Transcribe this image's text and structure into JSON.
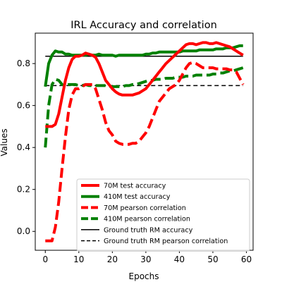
{
  "chart_data": {
    "type": "line",
    "title": "IRL Accuracy and correlation",
    "xlabel": "Epochs",
    "ylabel": "Values",
    "xlim": [
      -3,
      62
    ],
    "ylim": [
      -0.09,
      0.945
    ],
    "xticks": [
      0,
      10,
      20,
      30,
      40,
      50,
      60
    ],
    "yticks": [
      0.0,
      0.2,
      0.4,
      0.6,
      0.8
    ],
    "grid": false,
    "legend_position": "lower-right",
    "series": [
      {
        "name": "70M test accuracy",
        "color": "#ff0000",
        "style": "solid",
        "width": 4,
        "x": [
          0,
          1,
          2,
          3,
          4,
          5,
          6,
          7,
          8,
          9,
          10,
          11,
          12,
          13,
          14,
          15,
          16,
          17,
          18,
          19,
          20,
          21,
          22,
          23,
          24,
          25,
          26,
          27,
          28,
          29,
          30,
          31,
          32,
          33,
          34,
          35,
          36,
          37,
          38,
          39,
          40,
          41,
          42,
          43,
          44,
          45,
          46,
          47,
          48,
          49,
          50,
          51,
          52,
          53,
          54,
          55,
          56,
          57,
          58,
          59
        ],
        "y": [
          0.5,
          0.5,
          0.5,
          0.51,
          0.56,
          0.64,
          0.72,
          0.78,
          0.82,
          0.835,
          0.835,
          0.84,
          0.85,
          0.845,
          0.84,
          0.83,
          0.8,
          0.76,
          0.72,
          0.7,
          0.68,
          0.665,
          0.655,
          0.65,
          0.65,
          0.65,
          0.65,
          0.655,
          0.66,
          0.67,
          0.68,
          0.7,
          0.72,
          0.74,
          0.76,
          0.78,
          0.8,
          0.815,
          0.83,
          0.845,
          0.86,
          0.875,
          0.89,
          0.895,
          0.895,
          0.89,
          0.895,
          0.9,
          0.9,
          0.895,
          0.895,
          0.9,
          0.895,
          0.89,
          0.885,
          0.88,
          0.87,
          0.86,
          0.85,
          0.84
        ]
      },
      {
        "name": "410M test accuracy",
        "color": "#008000",
        "style": "solid",
        "width": 4,
        "x": [
          0,
          1,
          2,
          3,
          4,
          5,
          6,
          7,
          8,
          9,
          10,
          11,
          12,
          13,
          14,
          15,
          16,
          17,
          18,
          19,
          20,
          21,
          22,
          23,
          24,
          25,
          26,
          27,
          28,
          29,
          30,
          31,
          32,
          33,
          34,
          35,
          36,
          37,
          38,
          39,
          40,
          41,
          42,
          43,
          44,
          45,
          46,
          47,
          48,
          49,
          50,
          51,
          52,
          53,
          54,
          55,
          56,
          57,
          58,
          59
        ],
        "y": [
          0.69,
          0.8,
          0.84,
          0.86,
          0.855,
          0.855,
          0.845,
          0.845,
          0.84,
          0.84,
          0.84,
          0.84,
          0.84,
          0.845,
          0.84,
          0.84,
          0.845,
          0.84,
          0.84,
          0.84,
          0.84,
          0.835,
          0.84,
          0.84,
          0.84,
          0.84,
          0.84,
          0.84,
          0.84,
          0.84,
          0.845,
          0.845,
          0.85,
          0.85,
          0.855,
          0.855,
          0.855,
          0.855,
          0.855,
          0.855,
          0.855,
          0.86,
          0.86,
          0.86,
          0.86,
          0.86,
          0.865,
          0.865,
          0.865,
          0.865,
          0.865,
          0.87,
          0.87,
          0.87,
          0.875,
          0.875,
          0.875,
          0.88,
          0.885,
          0.885
        ]
      },
      {
        "name": "70M pearson correlation",
        "color": "#ff0000",
        "style": "dashed",
        "width": 4,
        "x": [
          0,
          1,
          2,
          3,
          4,
          5,
          6,
          7,
          8,
          9,
          10,
          11,
          12,
          13,
          14,
          15,
          16,
          17,
          18,
          19,
          20,
          21,
          22,
          23,
          24,
          25,
          26,
          27,
          28,
          29,
          30,
          31,
          32,
          33,
          34,
          35,
          36,
          37,
          38,
          39,
          40,
          41,
          42,
          43,
          44,
          45,
          46,
          47,
          48,
          49,
          50,
          51,
          52,
          53,
          54,
          55,
          56,
          57,
          58,
          59
        ],
        "y": [
          -0.045,
          -0.045,
          -0.045,
          0.02,
          0.14,
          0.3,
          0.45,
          0.58,
          0.65,
          0.68,
          0.68,
          0.69,
          0.7,
          0.7,
          0.7,
          0.68,
          0.63,
          0.58,
          0.52,
          0.48,
          0.46,
          0.43,
          0.42,
          0.415,
          0.415,
          0.415,
          0.42,
          0.42,
          0.43,
          0.45,
          0.47,
          0.5,
          0.54,
          0.58,
          0.62,
          0.64,
          0.66,
          0.68,
          0.69,
          0.7,
          0.72,
          0.75,
          0.78,
          0.8,
          0.805,
          0.8,
          0.79,
          0.78,
          0.78,
          0.78,
          0.78,
          0.775,
          0.775,
          0.775,
          0.775,
          0.77,
          0.77,
          0.76,
          0.73,
          0.7
        ]
      },
      {
        "name": "410M pearson correlation",
        "color": "#008000",
        "style": "dashed",
        "width": 4,
        "x": [
          0,
          1,
          2,
          3,
          4,
          5,
          6,
          7,
          8,
          9,
          10,
          11,
          12,
          13,
          14,
          15,
          16,
          17,
          18,
          19,
          20,
          21,
          22,
          23,
          24,
          25,
          26,
          27,
          28,
          29,
          30,
          31,
          32,
          33,
          34,
          35,
          36,
          37,
          38,
          39,
          40,
          41,
          42,
          43,
          44,
          45,
          46,
          47,
          48,
          49,
          50,
          51,
          52,
          53,
          54,
          55,
          56,
          57,
          58,
          59
        ],
        "y": [
          0.4,
          0.6,
          0.7,
          0.725,
          0.72,
          0.7,
          0.695,
          0.7,
          0.7,
          0.7,
          0.695,
          0.695,
          0.7,
          0.695,
          0.695,
          0.695,
          0.695,
          0.695,
          0.695,
          0.69,
          0.69,
          0.69,
          0.69,
          0.69,
          0.695,
          0.695,
          0.7,
          0.7,
          0.705,
          0.71,
          0.715,
          0.72,
          0.72,
          0.725,
          0.725,
          0.725,
          0.73,
          0.73,
          0.73,
          0.735,
          0.735,
          0.735,
          0.74,
          0.74,
          0.74,
          0.745,
          0.745,
          0.745,
          0.745,
          0.745,
          0.75,
          0.75,
          0.755,
          0.755,
          0.76,
          0.765,
          0.765,
          0.77,
          0.775,
          0.78
        ]
      },
      {
        "name": "Ground truth RM accuracy",
        "color": "#000000",
        "style": "solid",
        "width": 1.5,
        "x": [
          0,
          59
        ],
        "y": [
          0.835,
          0.835
        ]
      },
      {
        "name": "Ground truth RM pearson correlation",
        "color": "#000000",
        "style": "dashed",
        "width": 1.5,
        "x": [
          0,
          59
        ],
        "y": [
          0.695,
          0.695
        ]
      }
    ]
  }
}
